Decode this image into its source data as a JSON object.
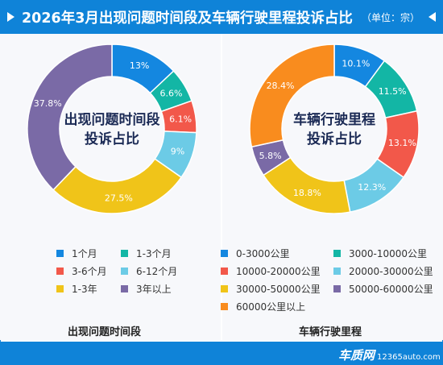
{
  "header": {
    "title": "2026年3月出现问题时间段及车辆行驶里程投诉占比",
    "unit": "（单位：宗）"
  },
  "colors": {
    "header_bg": "#0f83d8",
    "blue": "#1487e0",
    "teal": "#13b6a5",
    "red": "#f2584a",
    "light_blue": "#6ccbe6",
    "yellow": "#f0c419",
    "purple": "#7a6aa6",
    "orange": "#f98c1e"
  },
  "chart_data": [
    {
      "type": "pie",
      "donut": true,
      "title": "出现问题时间段",
      "center_label": [
        "出现问题时间段",
        "投诉占比"
      ],
      "legend_position": "bottom",
      "categories": [
        "1个月",
        "1-3个月",
        "3-6个月",
        "6-12个月",
        "1-3年",
        "3年以上"
      ],
      "values": [
        13,
        6.6,
        6.1,
        9,
        27.5,
        37.8
      ],
      "labels": [
        "13%",
        "6.6%",
        "6.1%",
        "9%",
        "27.5%",
        "37.8%"
      ],
      "colors": [
        "#1487e0",
        "#13b6a5",
        "#f2584a",
        "#6ccbe6",
        "#f0c419",
        "#7a6aa6"
      ]
    },
    {
      "type": "pie",
      "donut": true,
      "title": "车辆行驶里程",
      "center_label": [
        "车辆行驶里程",
        "投诉占比"
      ],
      "legend_position": "bottom",
      "categories": [
        "0-3000公里",
        "3000-10000公里",
        "10000-20000公里",
        "20000-30000公里",
        "30000-50000公里",
        "50000-60000公里",
        "60000公里以上"
      ],
      "values": [
        10.1,
        11.5,
        13.1,
        12.3,
        18.8,
        5.8,
        28.4
      ],
      "labels": [
        "10.1%",
        "11.5%",
        "13.1%",
        "12.3%",
        "18.8%",
        "5.8%",
        "28.4%"
      ],
      "colors": [
        "#1487e0",
        "#13b6a5",
        "#f2584a",
        "#6ccbe6",
        "#f0c419",
        "#7a6aa6",
        "#f98c1e"
      ]
    }
  ],
  "footer": {
    "logo": "车质网",
    "site": "12365auto.com"
  }
}
